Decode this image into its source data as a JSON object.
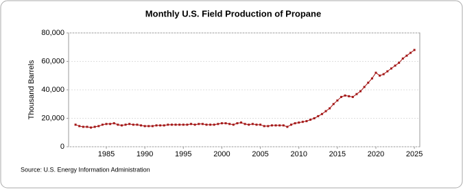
{
  "chart_data": {
    "type": "line",
    "title": "Monthly U.S. Field Production of Propane",
    "y_label": "Thousand Barrels",
    "source": "Source: U.S. Energy Information Administration",
    "x": [
      1981,
      1981.5,
      1982,
      1982.5,
      1983,
      1983.5,
      1984,
      1984.5,
      1985,
      1985.5,
      1986,
      1986.5,
      1987,
      1987.5,
      1988,
      1988.5,
      1989,
      1989.5,
      1990,
      1990.5,
      1991,
      1991.5,
      1992,
      1992.5,
      1993,
      1993.5,
      1994,
      1994.5,
      1995,
      1995.5,
      1996,
      1996.5,
      1997,
      1997.5,
      1998,
      1998.5,
      1999,
      1999.5,
      2000,
      2000.5,
      2001,
      2001.5,
      2002,
      2002.5,
      2003,
      2003.5,
      2004,
      2004.5,
      2005,
      2005.5,
      2006,
      2006.5,
      2007,
      2007.5,
      2008,
      2008.5,
      2009,
      2009.5,
      2010,
      2010.5,
      2011,
      2011.5,
      2012,
      2012.5,
      2013,
      2013.5,
      2014,
      2014.5,
      2015,
      2015.5,
      2016,
      2016.5,
      2017,
      2017.5,
      2018,
      2018.5,
      2019,
      2019.5,
      2020,
      2020.5,
      2021,
      2021.5,
      2022,
      2022.5,
      2023,
      2023.5,
      2024,
      2024.5,
      2025
    ],
    "series": [
      {
        "name": "Field Production of Propane",
        "color": "#a31515",
        "values": [
          15500,
          14500,
          14000,
          14000,
          13500,
          14000,
          14500,
          15500,
          16000,
          16000,
          16500,
          15500,
          15000,
          15500,
          16000,
          15500,
          15500,
          15000,
          14500,
          14500,
          14500,
          15000,
          15000,
          15000,
          15500,
          15500,
          15500,
          15500,
          15500,
          15500,
          16000,
          15500,
          16000,
          16000,
          15500,
          15500,
          15500,
          16000,
          16500,
          16500,
          16000,
          15500,
          16500,
          17000,
          16000,
          15500,
          16000,
          15500,
          15500,
          14500,
          14500,
          15000,
          15000,
          15000,
          15000,
          14000,
          15500,
          16500,
          17000,
          17500,
          18000,
          19000,
          20000,
          21500,
          23000,
          25000,
          27000,
          30000,
          32500,
          35000,
          36000,
          35500,
          35000,
          37000,
          39000,
          42000,
          45000,
          48000,
          52000,
          50000,
          51000,
          53000,
          55000,
          57000,
          59000,
          62000,
          64000,
          66000,
          68000
        ]
      }
    ],
    "xlim": [
      1980.1,
      2025.7
    ],
    "xticks": [
      1985,
      1990,
      1995,
      2000,
      2005,
      2010,
      2015,
      2020,
      2025
    ],
    "ylim": [
      0,
      80000
    ],
    "yticks": [
      0,
      {
        "value": 20000,
        "label": "20,000"
      },
      {
        "value": 40000,
        "label": "40,000"
      },
      {
        "value": 60000,
        "label": "60,000"
      },
      {
        "value": 80000,
        "label": "80,000"
      }
    ],
    "grid": true
  }
}
